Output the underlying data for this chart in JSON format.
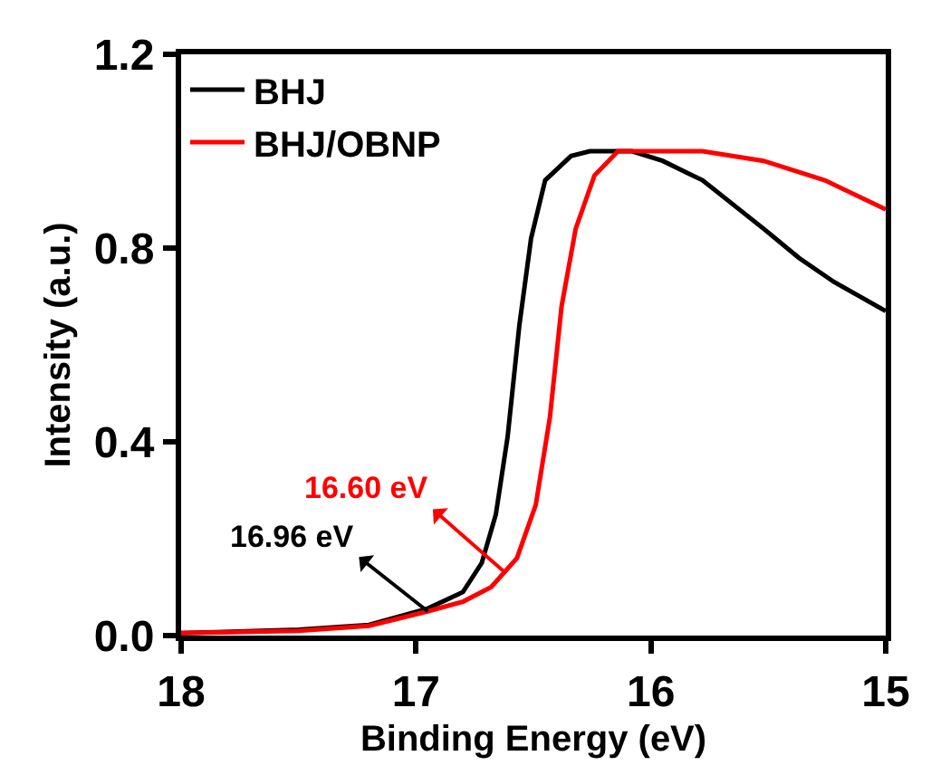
{
  "chart_data": {
    "type": "line",
    "xlabel": "Binding Energy (eV)",
    "ylabel": "Intensity (a.u.)",
    "xlim": [
      18,
      15
    ],
    "xticks": [
      18,
      17,
      16,
      15
    ],
    "ylim": [
      0,
      1.2
    ],
    "yticks": [
      {
        "value": 0,
        "label": "0.0"
      },
      0.4,
      0.8,
      1.2
    ],
    "grid": false,
    "legend": "top left",
    "marker": "none",
    "line_style": "solid",
    "series": [
      {
        "name": "BHJ",
        "color": "#000000",
        "x": [
          18,
          17.5,
          17.2,
          16.95,
          16.8,
          16.72,
          16.66,
          16.61,
          16.56,
          16.51,
          16.45,
          16.34,
          16.26,
          16.08,
          15.95,
          15.78,
          15.52,
          15.37,
          15.22,
          15
        ],
        "values": [
          0.005,
          0.012,
          0.022,
          0.056,
          0.09,
          0.15,
          0.25,
          0.41,
          0.64,
          0.82,
          0.94,
          0.99,
          1.0,
          1.0,
          0.98,
          0.94,
          0.84,
          0.78,
          0.73,
          0.67
        ]
      },
      {
        "name": "BHJ/OBNP",
        "color": "#ff0000",
        "x": [
          18,
          17.5,
          17.2,
          16.95,
          16.8,
          16.68,
          16.57,
          16.49,
          16.43,
          16.38,
          16.32,
          16.24,
          16.14,
          15.78,
          15.52,
          15.26,
          15
        ],
        "values": [
          0.005,
          0.01,
          0.02,
          0.05,
          0.07,
          0.1,
          0.16,
          0.27,
          0.45,
          0.68,
          0.84,
          0.95,
          1.0,
          1.0,
          0.98,
          0.94,
          0.88
        ]
      }
    ],
    "annotations": [
      {
        "text": "16.96 eV",
        "x": 16.95,
        "y": 0.05
      },
      {
        "text": "16.60 eV",
        "x": 16.62,
        "y": 0.13
      }
    ]
  }
}
